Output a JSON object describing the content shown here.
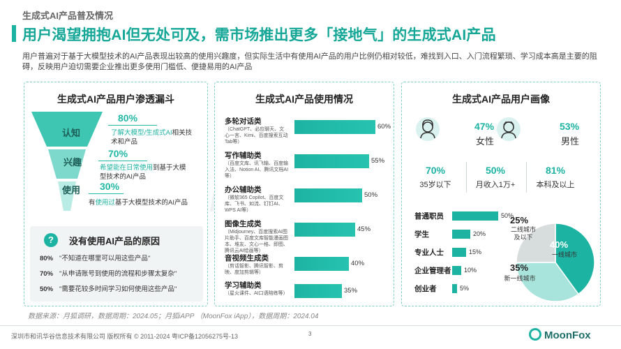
{
  "header": {
    "section_tag": "生成式AI产品普及情况",
    "title": "用户渴望拥抱AI但无处可及，需市场推出更多「接地气」的生成式AI产品",
    "intro": "用户普遍对于基于大模型技术的AI产品表现出较高的使用兴趣度，但实际生活中有使用AI产品的用户比例仍相对较低，难找到入口、入门流程繁琐、学习成本高是主要的阻碍，反映用户迫切需要企业推出更多使用门槛低、便捷易用的AI产品"
  },
  "funnel": {
    "title": "生成式AI产品用户渗透漏斗",
    "colors": [
      "#3fc6b3",
      "#7dd9cb",
      "#b8ece4"
    ],
    "stages": [
      {
        "label": "认知",
        "pct": "80%",
        "desc_hl": "了解大模型/生成式AI",
        "desc_rest": "相关技术和产品",
        "desc_pre": ""
      },
      {
        "label": "兴趣",
        "pct": "70%",
        "desc_hl": "希望能在日常使用",
        "desc_rest": "到基于大模型技术的AI产品",
        "desc_pre": ""
      },
      {
        "label": "使用",
        "pct": "30%",
        "desc_pre": "有",
        "desc_hl": "使用过",
        "desc_rest": "基于大模型技术的AI产品"
      }
    ],
    "reasons_title": "没有使用AI产品的原因",
    "reasons_icon": "?",
    "reasons": [
      {
        "pct": "80%",
        "text": "\"不知道在哪里可以用这些产品\""
      },
      {
        "pct": "70%",
        "text": "\"从申请账号到使用的流程和步骤太复杂\""
      },
      {
        "pct": "50%",
        "text": "\"需要花较多时间学习如何使用这些产品\""
      }
    ]
  },
  "usage": {
    "title": "生成式AI产品使用情况",
    "items": [
      {
        "name": "多轮对话类",
        "sub": "（ChatGPT、必应聊天、文心一言、Kimi、百度搜索互动Tab等）",
        "value": 60,
        "label": "60%"
      },
      {
        "name": "写作辅助类",
        "sub": "（百度文库、讯飞输、百度输入法、Notion AI、腾讯文档AI等）",
        "value": 55,
        "label": "55%"
      },
      {
        "name": "办公辅助类",
        "sub": "（微软365 Copilot、百度文库、飞书、如流、钉钉AI、WPS AI等）",
        "value": 50,
        "label": "50%"
      },
      {
        "name": "图像生成类",
        "sub": "（Midjourney、百度搜索AI图片助手、百度文库智能漫画图本、堆友、文心一格、即图、腾讯云AI绘画等）",
        "value": 45,
        "label": "45%"
      },
      {
        "name": "音视频生成类",
        "sub": "（剪话智影、腾讯智影、剪映、度加剪辑等）",
        "value": 40,
        "label": "40%"
      },
      {
        "name": "学习辅助类",
        "sub": "（星火课件、AI口语陪练等）",
        "value": 35,
        "label": "35%"
      }
    ]
  },
  "portrait": {
    "title": "生成式AI产品用户画像",
    "gender": [
      {
        "pct": "47%",
        "label": "女性",
        "icon": "female-user-icon"
      },
      {
        "pct": "53%",
        "label": "男性",
        "icon": "male-user-icon"
      }
    ],
    "stats": [
      {
        "num": "70%",
        "label": "35岁以下"
      },
      {
        "num": "50%",
        "label": "月收入1万+"
      },
      {
        "num": "81%",
        "label": "本科及以上"
      }
    ],
    "occupations": [
      {
        "name": "普通职员",
        "value": 50,
        "label": "50%"
      },
      {
        "name": "学生",
        "value": 20,
        "label": "20%"
      },
      {
        "name": "专业人士",
        "value": 15,
        "label": "15%"
      },
      {
        "name": "企业管理者",
        "value": 10,
        "label": "10%"
      },
      {
        "name": "创业者",
        "value": 5,
        "label": "5%"
      }
    ],
    "city_pie": {
      "slices": [
        {
          "name": "一线城市",
          "value": 40,
          "pct": "40%",
          "color": "#1db3a3"
        },
        {
          "name": "新一线城市",
          "value": 35,
          "pct": "35%",
          "color": "#a8e4dc"
        },
        {
          "name": "二线城市及以下",
          "value": 25,
          "pct": "25%",
          "color": "#d7dcdc"
        }
      ],
      "labels": {
        "second": "二线城市\n及以下",
        "first": "一线城市",
        "newfirst": "新一线城市"
      }
    }
  },
  "chart_data": [
    {
      "type": "bar",
      "title": "生成式AI产品使用情况",
      "categories": [
        "多轮对话类",
        "写作辅助类",
        "办公辅助类",
        "图像生成类",
        "音视频生成类",
        "学习辅助类"
      ],
      "values": [
        60,
        55,
        50,
        45,
        40,
        35
      ],
      "unit": "%",
      "orientation": "horizontal"
    },
    {
      "type": "bar",
      "title": "生成式AI产品用户画像",
      "categories": [
        "普通职员",
        "学生",
        "专业人士",
        "企业管理者",
        "创业者"
      ],
      "values": [
        50,
        20,
        15,
        10,
        5
      ],
      "unit": "%",
      "orientation": "horizontal"
    },
    {
      "type": "pie",
      "categories": [
        "一线城市",
        "新一线城市",
        "二线城市及以下"
      ],
      "values": [
        40,
        35,
        25
      ],
      "unit": "%"
    },
    {
      "type": "bar",
      "title": "生成式AI产品用户渗透漏斗",
      "categories": [
        "认知",
        "兴趣",
        "使用"
      ],
      "values": [
        80,
        70,
        30
      ],
      "unit": "%"
    }
  ],
  "source": "数据来源：月狐调研，数据周期：2024.05；月狐iAPP （MoonFox iApp），数据周期：2024.04",
  "footer": {
    "copyright": "深圳市和讯华谷信息技术有限公司 版权所有 © 2011-2024 粤ICP备12056275号-13",
    "page": "3",
    "logo": "MoonFox",
    "watermark": "MoonFox"
  }
}
